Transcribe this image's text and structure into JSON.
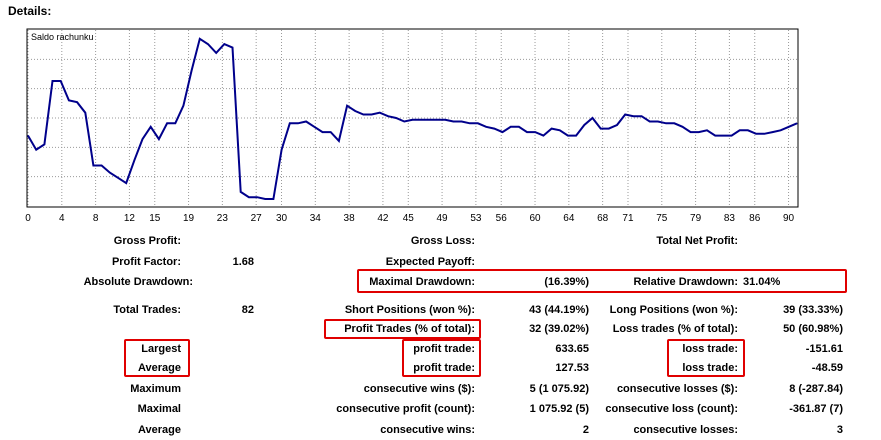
{
  "header": {
    "title": "Details:"
  },
  "chart_data": {
    "type": "line",
    "title": "Saldo rachunku",
    "x_ticks": [
      "0",
      "4",
      "8",
      "12",
      "15",
      "19",
      "23",
      "27",
      "30",
      "34",
      "38",
      "42",
      "45",
      "49",
      "53",
      "56",
      "60",
      "64",
      "68",
      "71",
      "75",
      "79",
      "83",
      "86",
      "90"
    ],
    "xlim": [
      0,
      91
    ],
    "ylim": [
      0,
      100
    ],
    "grid": true,
    "series_color": "#00008b",
    "series": [
      {
        "values": [
          40,
          32,
          35,
          71,
          71,
          60,
          59,
          53,
          23,
          23,
          19,
          16,
          13,
          26,
          38,
          45,
          38,
          47,
          47,
          57,
          77,
          95,
          92,
          87,
          92,
          90,
          8,
          5,
          5,
          4,
          4,
          32,
          47,
          47,
          48,
          45,
          42,
          42,
          37,
          57,
          54,
          52,
          52,
          53,
          51,
          50,
          48,
          49,
          49,
          49,
          49,
          49,
          48,
          48,
          47,
          47,
          45,
          44,
          42,
          45,
          45,
          42,
          42,
          40,
          44,
          43,
          40,
          40,
          46,
          50,
          44,
          44,
          46,
          52,
          51,
          51,
          48,
          48,
          47,
          47,
          45,
          42,
          42,
          43,
          40,
          40,
          40,
          43,
          43,
          41,
          41,
          42,
          43,
          45,
          47
        ]
      }
    ]
  },
  "stats": {
    "gross_profit": {
      "label": "Gross Profit:",
      "value": ""
    },
    "gross_loss": {
      "label": "Gross Loss:",
      "value": ""
    },
    "total_net_profit": {
      "label": "Total Net Profit:",
      "value": ""
    },
    "profit_factor": {
      "label": "Profit Factor:",
      "value": "1.68"
    },
    "expected_payoff": {
      "label": "Expected Payoff:",
      "value": ""
    },
    "absolute_drawdown": {
      "label": "Absolute Drawdown:",
      "value": ""
    },
    "maximal_drawdown": {
      "label": "Maximal Drawdown:",
      "value": "(16.39%)"
    },
    "relative_drawdown": {
      "label": "Relative Drawdown:",
      "value": "31.04%"
    },
    "total_trades": {
      "label": "Total Trades:",
      "value": "82"
    },
    "short_positions": {
      "label": "Short Positions (won %):",
      "value": "43 (44.19%)"
    },
    "long_positions": {
      "label": "Long Positions (won %):",
      "value": "39 (33.33%)"
    },
    "profit_trades": {
      "label": "Profit Trades (% of total):",
      "value": "32 (39.02%)"
    },
    "loss_trades": {
      "label": "Loss trades (% of total):",
      "value": "50 (60.98%)"
    },
    "largest": {
      "label": "Largest",
      "profit_label": "profit trade:",
      "profit_value": "633.65",
      "loss_label": "loss trade:",
      "loss_value": "-151.61"
    },
    "average": {
      "label": "Average",
      "profit_label": "profit trade:",
      "profit_value": "127.53",
      "loss_label": "loss trade:",
      "loss_value": "-48.59"
    },
    "maximum": {
      "label": "Maximum",
      "wins_label": "consecutive wins ($):",
      "wins_value": "5 (1 075.92)",
      "losses_label": "consecutive losses ($):",
      "losses_value": "8 (-287.84)"
    },
    "maximal": {
      "label": "Maximal",
      "profit_label": "consecutive profit (count):",
      "profit_value": "1 075.92 (5)",
      "loss_label": "consecutive loss (count):",
      "loss_value": "-361.87 (7)"
    },
    "average_consecutive": {
      "label": "Average",
      "wins_label": "consecutive wins:",
      "wins_value": "2",
      "losses_label": "consecutive losses:",
      "losses_value": "3"
    }
  }
}
